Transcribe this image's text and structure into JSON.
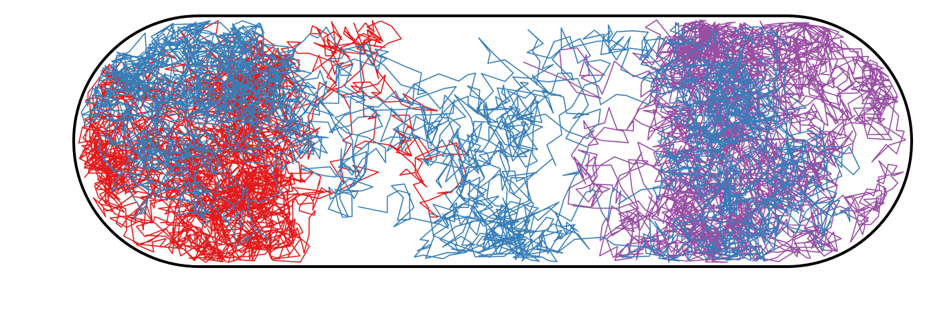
{
  "figure": {
    "boundary_color": "#000000",
    "background_color": "#ffffff"
  },
  "trajectories": [
    {
      "color": "#e41a1c",
      "icon": "red-random-walk-path",
      "region": "left-pole"
    },
    {
      "color": "#984ea3",
      "icon": "purple-random-walk-path",
      "region": "right-pole"
    },
    {
      "color": "#377eb8",
      "icon": "blue-random-walk-path",
      "region": "whole-cell"
    }
  ]
}
